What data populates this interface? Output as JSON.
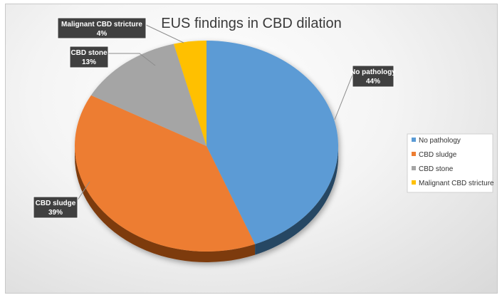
{
  "chart_data": {
    "type": "pie",
    "title": "EUS findings in CBD dilation",
    "slices": [
      {
        "label": "No pathology",
        "value": 44,
        "display": "44%",
        "color": "#5b9bd5",
        "side_color": "#264763"
      },
      {
        "label": "CBD sludge",
        "value": 39,
        "display": "39%",
        "color": "#ed7d31",
        "side_color": "#7d3a0d"
      },
      {
        "label": "CBD stone",
        "value": 13,
        "display": "13%",
        "color": "#a5a5a5",
        "side_color": "#5c5c5c"
      },
      {
        "label": "Malignant  CBD stricture",
        "value": 4,
        "display": "4%",
        "color": "#ffc000",
        "side_color": "#8a6800"
      }
    ],
    "legend": {
      "position": "right",
      "entries": [
        "No pathology",
        "CBD sludge",
        "CBD stone",
        "Malignant CBD stricture"
      ]
    },
    "style": "3d-pie"
  }
}
